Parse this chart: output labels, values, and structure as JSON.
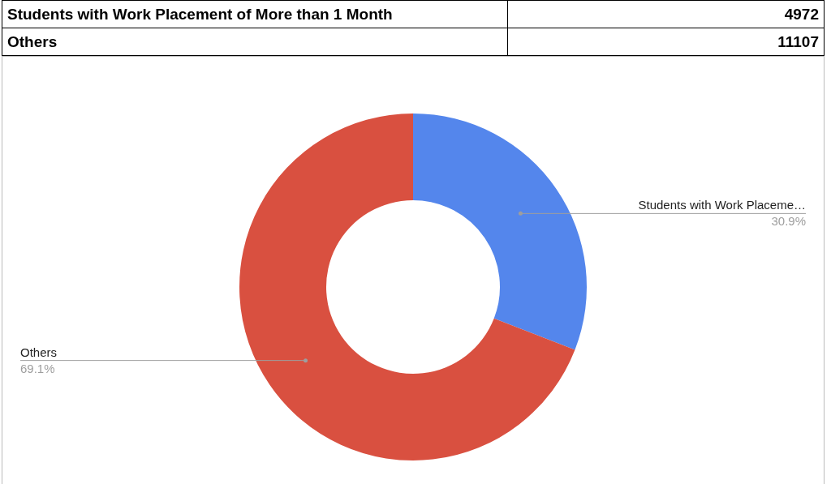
{
  "chart_data": [
    {
      "type": "other",
      "categories": [
        "Students with Work Placement of More than 1 Month",
        "Others"
      ],
      "values": [
        4972,
        11107
      ],
      "data_labels": true
    },
    {
      "type": "donut",
      "categories": [
        "Students with Work Placeme…",
        "Others"
      ],
      "values": [
        30.9,
        69.1
      ],
      "colors": [
        "#5486ec",
        "#d95040"
      ],
      "value_labels": [
        "30.9%",
        "69.1%"
      ]
    }
  ]
}
